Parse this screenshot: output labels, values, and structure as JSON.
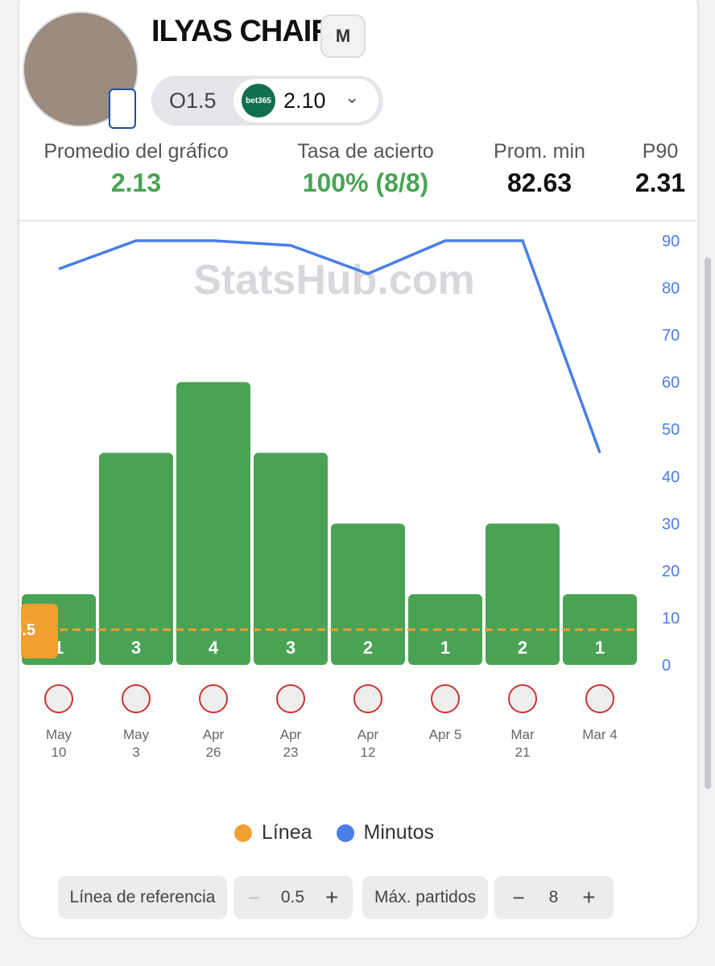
{
  "header": {
    "player": "ILYAS CHAIRA",
    "position": "M",
    "line": "O1.5",
    "bookmaker": "bet365",
    "odds": "2.10"
  },
  "stats": [
    {
      "label": "Promedio del gráfico",
      "value": "2.13"
    },
    {
      "label": "Tasa de acierto",
      "value": "100% (8/8)"
    },
    {
      "label": "Prom. min",
      "value": "82.63"
    },
    {
      "label": "P90",
      "value": "2.31"
    }
  ],
  "chart_data": {
    "type": "bar",
    "watermark": "StatsHub.com",
    "categories": [
      "May 10",
      "May 3",
      "Apr 26",
      "Apr 23",
      "Apr 12",
      "Apr 5",
      "Mar 21",
      "Mar 4"
    ],
    "series": [
      {
        "name": "Línea",
        "color": "#f0a030",
        "values": [
          1,
          3,
          4,
          3,
          2,
          1,
          2,
          1
        ],
        "bar_color": "#4aa354"
      },
      {
        "name": "Minutos",
        "color": "#4a7ee8",
        "axis": "y2",
        "values": [
          84,
          90,
          90,
          89,
          83,
          90,
          90,
          45
        ]
      }
    ],
    "reference_line": 0.5,
    "ylim": [
      0,
      6
    ],
    "y2lim": [
      0,
      90
    ],
    "y2ticks": [
      0,
      10,
      20,
      30,
      40,
      50,
      60,
      70,
      80,
      90
    ]
  },
  "controls": [
    {
      "label": "Línea de referencia"
    },
    {
      "label": "Máx. partidos",
      "value": 8
    }
  ]
}
